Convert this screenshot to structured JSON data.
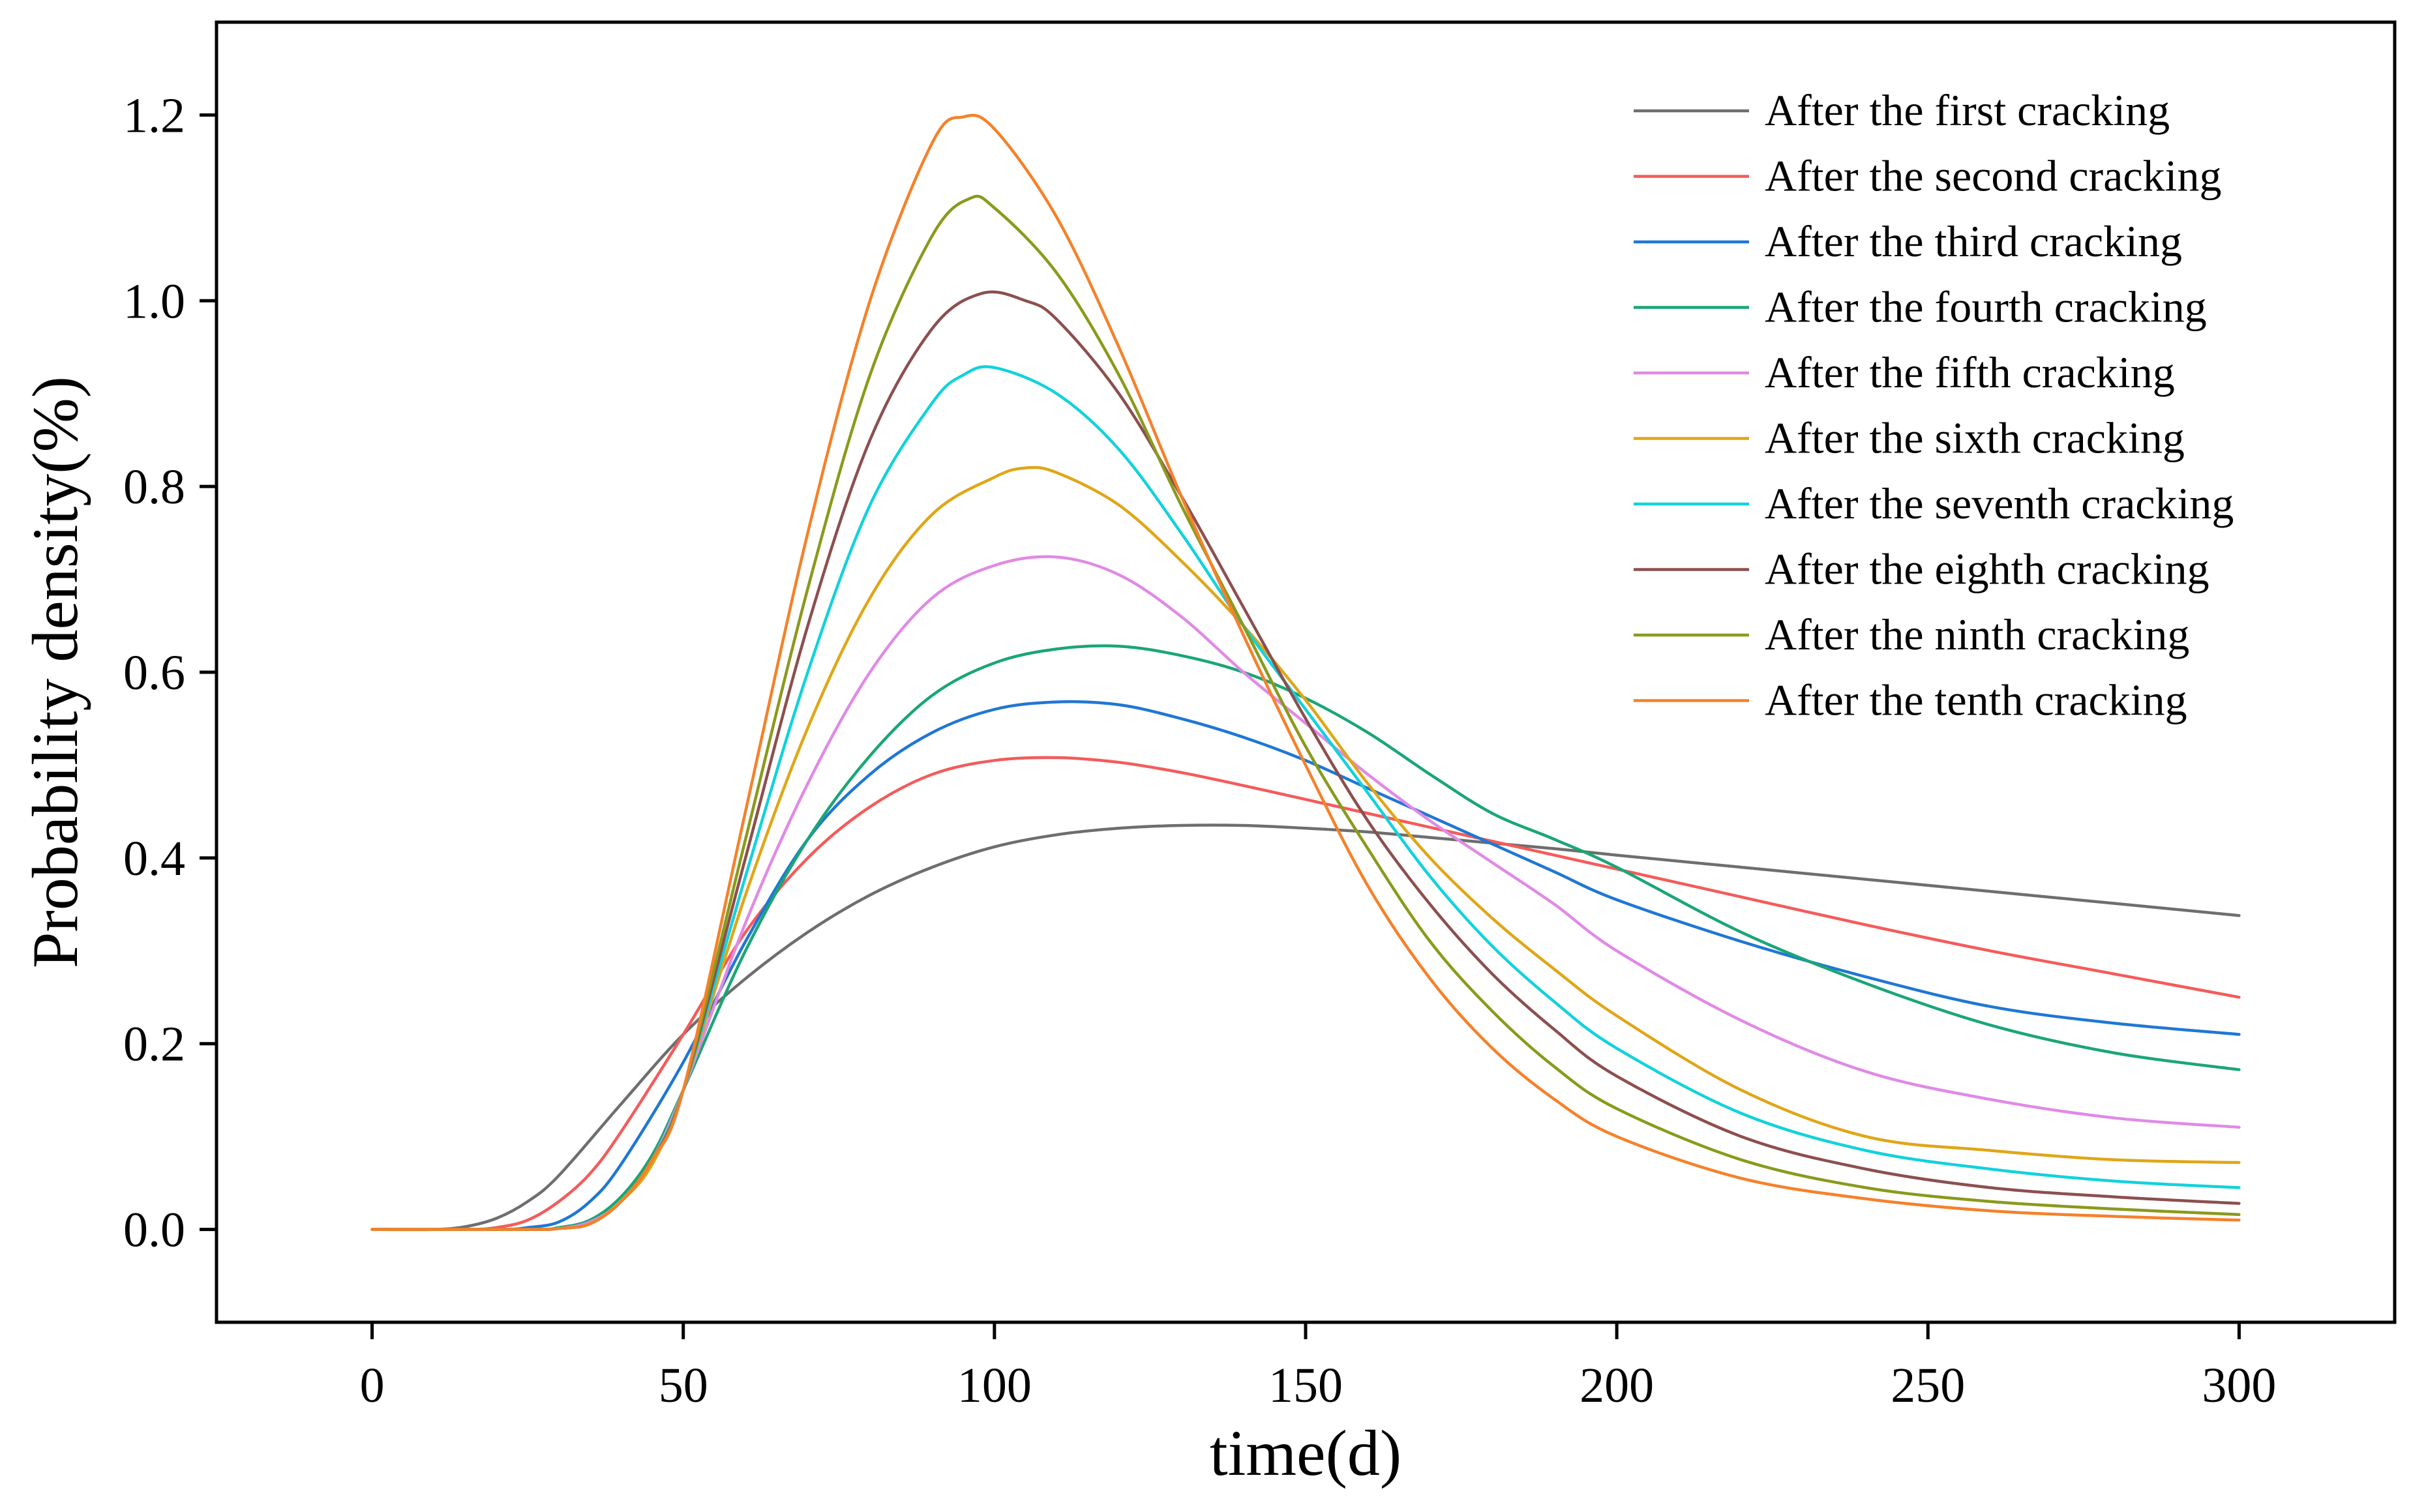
{
  "chart_data": {
    "type": "line",
    "title": "",
    "xlabel": "time(d)",
    "ylabel": "Probability density(%)",
    "xlim": [
      -25,
      325
    ],
    "ylim": [
      -0.1,
      1.3
    ],
    "xticks": [
      {
        "value": 0,
        "label": "0"
      },
      {
        "value": 50,
        "label": "50"
      },
      {
        "value": 100,
        "label": "100"
      },
      {
        "value": 150,
        "label": "150"
      },
      {
        "value": 200,
        "label": "200"
      },
      {
        "value": 250,
        "label": "250"
      },
      {
        "value": 300,
        "label": "300"
      }
    ],
    "yticks": [
      {
        "value": 0.0,
        "label": "0.0"
      },
      {
        "value": 0.2,
        "label": "0.2"
      },
      {
        "value": 0.4,
        "label": "0.4"
      },
      {
        "value": 0.6,
        "label": "0.6"
      },
      {
        "value": 0.8,
        "label": "0.8"
      },
      {
        "value": 1.0,
        "label": "1.0"
      },
      {
        "value": 1.2,
        "label": "1.2"
      }
    ],
    "grid": false,
    "legend_position": "top-right",
    "series": [
      {
        "name": "After the first cracking",
        "color": "#6e6e6e",
        "x": [
          0,
          10,
          15,
          20,
          25,
          30,
          40,
          50,
          60,
          70,
          80,
          90,
          100,
          110,
          120,
          130,
          140,
          150,
          160,
          170,
          180,
          190,
          200,
          220,
          240,
          260,
          280,
          300
        ],
        "y": [
          0,
          0,
          0.003,
          0.012,
          0.03,
          0.058,
          0.135,
          0.21,
          0.27,
          0.32,
          0.36,
          0.39,
          0.412,
          0.425,
          0.432,
          0.435,
          0.435,
          0.432,
          0.428,
          0.422,
          0.416,
          0.41,
          0.403,
          0.39,
          0.377,
          0.364,
          0.351,
          0.338
        ]
      },
      {
        "name": "After the second cracking",
        "color": "#f45b5b",
        "x": [
          0,
          15,
          20,
          25,
          30,
          35,
          40,
          50,
          60,
          70,
          80,
          90,
          100,
          110,
          120,
          130,
          140,
          150,
          160,
          170,
          180,
          190,
          200,
          220,
          240,
          260,
          280,
          300
        ],
        "y": [
          0,
          0,
          0.002,
          0.01,
          0.03,
          0.06,
          0.105,
          0.21,
          0.32,
          0.4,
          0.455,
          0.49,
          0.505,
          0.508,
          0.503,
          0.492,
          0.478,
          0.463,
          0.448,
          0.433,
          0.418,
          0.403,
          0.388,
          0.358,
          0.328,
          0.3,
          0.275,
          0.25
        ]
      },
      {
        "name": "After the third cracking",
        "color": "#1f77d4",
        "x": [
          0,
          20,
          25,
          30,
          35,
          40,
          50,
          60,
          70,
          80,
          90,
          100,
          110,
          120,
          130,
          140,
          150,
          160,
          170,
          180,
          190,
          200,
          220,
          240,
          260,
          280,
          300
        ],
        "y": [
          0,
          0,
          0.002,
          0.008,
          0.03,
          0.07,
          0.18,
          0.31,
          0.42,
          0.49,
          0.535,
          0.56,
          0.568,
          0.565,
          0.55,
          0.53,
          0.505,
          0.475,
          0.445,
          0.415,
          0.385,
          0.355,
          0.31,
          0.272,
          0.24,
          0.222,
          0.21
        ]
      },
      {
        "name": "After the fourth cracking",
        "color": "#1aa676",
        "x": [
          0,
          25,
          30,
          35,
          40,
          45,
          50,
          60,
          70,
          80,
          90,
          100,
          110,
          120,
          130,
          140,
          150,
          160,
          170,
          180,
          190,
          200,
          220,
          240,
          260,
          280,
          300
        ],
        "y": [
          0,
          0,
          0.002,
          0.01,
          0.035,
          0.08,
          0.15,
          0.3,
          0.42,
          0.51,
          0.575,
          0.61,
          0.625,
          0.628,
          0.618,
          0.6,
          0.572,
          0.535,
          0.49,
          0.448,
          0.42,
          0.39,
          0.32,
          0.265,
          0.22,
          0.19,
          0.172
        ]
      },
      {
        "name": "After the fifth cracking",
        "color": "#e08ae6",
        "x": [
          0,
          25,
          30,
          35,
          40,
          45,
          50,
          60,
          70,
          80,
          90,
          100,
          110,
          120,
          130,
          140,
          150,
          160,
          170,
          180,
          190,
          200,
          220,
          240,
          260,
          280,
          300
        ],
        "y": [
          0,
          0,
          0.001,
          0.008,
          0.03,
          0.075,
          0.15,
          0.33,
          0.48,
          0.6,
          0.68,
          0.715,
          0.724,
          0.705,
          0.66,
          0.6,
          0.545,
          0.49,
          0.44,
          0.395,
          0.35,
          0.3,
          0.225,
          0.17,
          0.14,
          0.12,
          0.11
        ]
      },
      {
        "name": "After the sixth cracking",
        "color": "#e0a617",
        "x": [
          0,
          25,
          30,
          35,
          40,
          45,
          50,
          60,
          70,
          80,
          90,
          100,
          105,
          110,
          120,
          130,
          140,
          150,
          160,
          170,
          180,
          190,
          200,
          220,
          240,
          260,
          280,
          300
        ],
        "y": [
          0,
          0,
          0.001,
          0.006,
          0.03,
          0.07,
          0.15,
          0.36,
          0.54,
          0.68,
          0.77,
          0.81,
          0.82,
          0.815,
          0.78,
          0.72,
          0.65,
          0.57,
          0.48,
          0.4,
          0.335,
          0.28,
          0.23,
          0.15,
          0.1,
          0.085,
          0.075,
          0.072
        ]
      },
      {
        "name": "After the seventh cracking",
        "color": "#12d2dc",
        "x": [
          0,
          25,
          30,
          35,
          40,
          45,
          50,
          60,
          70,
          80,
          90,
          95,
          100,
          110,
          120,
          130,
          140,
          150,
          160,
          170,
          180,
          190,
          200,
          220,
          240,
          260,
          280,
          300
        ],
        "y": [
          0,
          0,
          0.001,
          0.006,
          0.03,
          0.075,
          0.15,
          0.38,
          0.6,
          0.78,
          0.89,
          0.92,
          0.928,
          0.9,
          0.84,
          0.75,
          0.65,
          0.56,
          0.47,
          0.38,
          0.305,
          0.245,
          0.195,
          0.125,
          0.085,
          0.065,
          0.052,
          0.045
        ]
      },
      {
        "name": "After the eighth cracking",
        "color": "#8c4f4f",
        "x": [
          0,
          25,
          30,
          35,
          40,
          45,
          50,
          60,
          70,
          80,
          90,
          98,
          105,
          110,
          120,
          130,
          140,
          150,
          160,
          170,
          180,
          190,
          200,
          220,
          240,
          260,
          280,
          300
        ],
        "y": [
          0,
          0,
          0.001,
          0.006,
          0.03,
          0.075,
          0.15,
          0.4,
          0.65,
          0.85,
          0.97,
          1.008,
          1.0,
          0.98,
          0.9,
          0.79,
          0.67,
          0.55,
          0.44,
          0.35,
          0.275,
          0.215,
          0.165,
          0.1,
          0.065,
          0.045,
          0.035,
          0.028
        ]
      },
      {
        "name": "After the ninth cracking",
        "color": "#8a9a1c",
        "x": [
          0,
          25,
          30,
          35,
          40,
          45,
          50,
          60,
          70,
          80,
          90,
          96,
          100,
          110,
          120,
          130,
          140,
          150,
          160,
          170,
          180,
          190,
          200,
          220,
          240,
          260,
          280,
          300
        ],
        "y": [
          0,
          0,
          0.001,
          0.006,
          0.03,
          0.075,
          0.15,
          0.42,
          0.69,
          0.92,
          1.07,
          1.11,
          1.1,
          1.03,
          0.92,
          0.78,
          0.65,
          0.52,
          0.41,
          0.31,
          0.235,
          0.175,
          0.13,
          0.075,
          0.045,
          0.03,
          0.022,
          0.016
        ]
      },
      {
        "name": "After the tenth cracking",
        "color": "#f5812a",
        "x": [
          0,
          25,
          30,
          35,
          40,
          45,
          50,
          60,
          70,
          80,
          90,
          95,
          100,
          110,
          120,
          130,
          140,
          150,
          160,
          170,
          180,
          190,
          200,
          220,
          240,
          260,
          280,
          300
        ],
        "y": [
          0,
          0,
          0.001,
          0.006,
          0.03,
          0.075,
          0.15,
          0.45,
          0.75,
          1.0,
          1.17,
          1.198,
          1.185,
          1.09,
          0.95,
          0.79,
          0.64,
          0.5,
          0.37,
          0.27,
          0.195,
          0.14,
          0.1,
          0.055,
          0.033,
          0.02,
          0.014,
          0.01
        ]
      }
    ]
  }
}
